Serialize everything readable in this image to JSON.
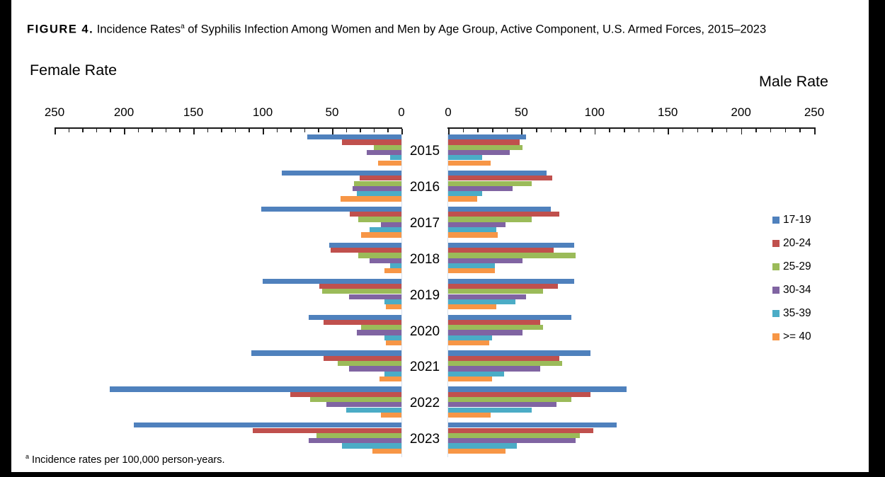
{
  "header": {
    "figure_label": "FIGURE 4.",
    "title_main": " Incidence Rates",
    "title_sup": "a",
    "title_rest": " of Syphilis Infection Among Women and Men by Age Group, Active Component, U.S. Armed Forces, 2015–2023"
  },
  "footnote": {
    "sup": "a",
    "text": " Incidence rates per 100,000 person-years."
  },
  "chart_data": {
    "type": "bar",
    "variant": "population-pyramid",
    "title": "Incidence Rates of Syphilis Infection Among Women and Men by Age Group, Active Component, U.S. Armed Forces, 2015–2023",
    "unit": "incidence rate per 100,000 person-years",
    "grid": false,
    "legend_position": "right",
    "axis": {
      "min": 0,
      "max": 250,
      "major_tick": 50,
      "minor_tick": 10
    },
    "years": [
      "2015",
      "2016",
      "2017",
      "2018",
      "2019",
      "2020",
      "2021",
      "2022",
      "2023"
    ],
    "age_groups": [
      "17-19",
      "20-24",
      "25-29",
      "30-34",
      "35-39",
      ">= 40"
    ],
    "colors": [
      "#4F81BD",
      "#C0504D",
      "#9BBB59",
      "#8064A2",
      "#4BACC6",
      "#F79646"
    ],
    "female": {
      "label": "Female Rate",
      "values": [
        [
          68,
          43,
          20,
          25,
          8,
          17
        ],
        [
          86,
          30,
          34,
          35,
          32,
          44
        ],
        [
          101,
          37,
          31,
          15,
          23,
          29
        ],
        [
          52,
          51,
          31,
          23,
          8,
          12
        ],
        [
          100,
          59,
          57,
          38,
          12,
          11
        ],
        [
          67,
          56,
          29,
          32,
          12,
          11
        ],
        [
          108,
          56,
          46,
          38,
          12,
          16
        ],
        [
          210,
          80,
          66,
          54,
          40,
          15
        ],
        [
          193,
          107,
          61,
          67,
          43,
          21
        ]
      ]
    },
    "male": {
      "label": "Male Rate",
      "values": [
        [
          53,
          49,
          51,
          42,
          23,
          29
        ],
        [
          67,
          71,
          57,
          44,
          23,
          20
        ],
        [
          70,
          76,
          57,
          39,
          33,
          34
        ],
        [
          86,
          72,
          87,
          51,
          32,
          32
        ],
        [
          86,
          75,
          65,
          53,
          46,
          33
        ],
        [
          84,
          63,
          65,
          51,
          30,
          28
        ],
        [
          97,
          76,
          78,
          63,
          38,
          30
        ],
        [
          122,
          97,
          84,
          74,
          57,
          29
        ],
        [
          115,
          99,
          90,
          87,
          47,
          39
        ]
      ]
    }
  }
}
